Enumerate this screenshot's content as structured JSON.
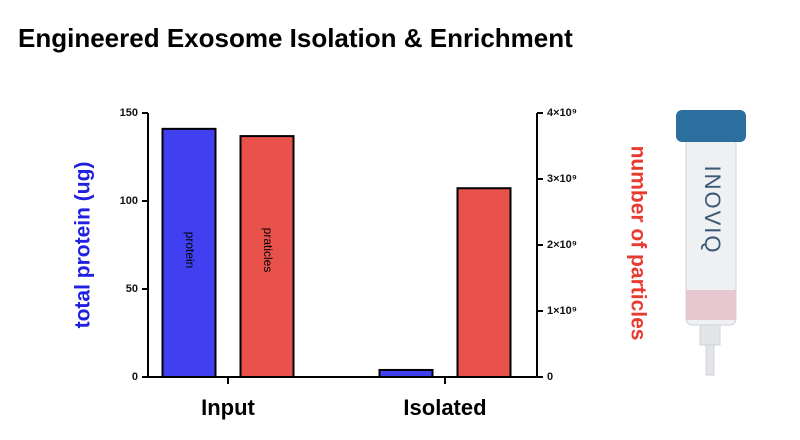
{
  "chart_data": {
    "type": "bar",
    "title": "Engineered Exosome Isolation & Enrichment",
    "ylabel": "total protein (ug)",
    "y2label": "number of particles",
    "categories": [
      "Input",
      "Isolated"
    ],
    "series": [
      {
        "name": "protein",
        "color": "#4040f0",
        "values": [
          141,
          4
        ]
      },
      {
        "name": "praticles",
        "color": "#e8524a",
        "values": [
          3650000000,
          2860000000
        ],
        "axis": "y2"
      }
    ],
    "ylim": [
      0,
      150
    ],
    "yticks": [
      0,
      50,
      100,
      150
    ],
    "y2lim": [
      0,
      4000000000
    ],
    "y2ticks": [
      0,
      {
        "value": 1000000000,
        "label": "1×10⁹"
      },
      {
        "value": 2000000000,
        "label": "2×10⁹"
      },
      {
        "value": 3000000000,
        "label": "3×10⁹"
      },
      {
        "value": 4000000000,
        "label": "4×10⁹"
      }
    ],
    "product_label": "INOVIQ"
  }
}
